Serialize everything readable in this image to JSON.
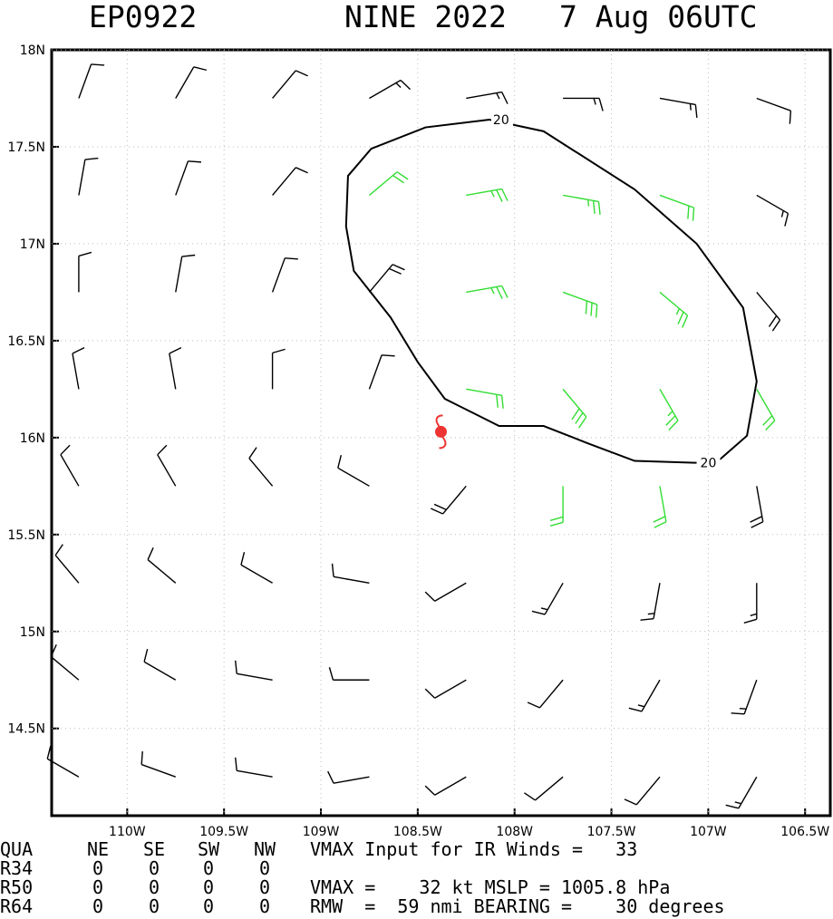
{
  "chart_data": {
    "type": "windbarb",
    "title_parts": [
      "EP0922",
      "NINE 2022",
      "7 Aug 06UTC"
    ],
    "xlim": [
      -110.39,
      -106.37
    ],
    "ylim": [
      14.05,
      18.0
    ],
    "xticks": [
      {
        "value": -110,
        "label": "110W"
      },
      {
        "value": -109.5,
        "label": "109.5W"
      },
      {
        "value": -109,
        "label": "109W"
      },
      {
        "value": -108.5,
        "label": "108.5W"
      },
      {
        "value": -108,
        "label": "108W"
      },
      {
        "value": -107.5,
        "label": "107.5W"
      },
      {
        "value": -107,
        "label": "107W"
      },
      {
        "value": -106.5,
        "label": "106.5W"
      }
    ],
    "yticks": [
      {
        "value": 18,
        "label": "18N"
      },
      {
        "value": 17.5,
        "label": "17.5N"
      },
      {
        "value": 17,
        "label": "17N"
      },
      {
        "value": 16.5,
        "label": "16.5N"
      },
      {
        "value": 16,
        "label": "16N"
      },
      {
        "value": 15.5,
        "label": "15.5N"
      },
      {
        "value": 15,
        "label": "15N"
      },
      {
        "value": 14.5,
        "label": "14.5N"
      }
    ],
    "grid": true,
    "color": "#000000",
    "highlight_color": "#33dd33",
    "barb_lats": [
      17.75,
      17.25,
      16.75,
      16.25,
      15.75,
      15.25,
      14.75,
      14.25
    ],
    "barb_lons": [
      -110.25,
      -109.75,
      -109.25,
      -108.75,
      -108.25,
      -107.75,
      -107.25,
      -106.75
    ],
    "barb_dir": [
      [
        20,
        30,
        40,
        60,
        80,
        90,
        100,
        110
      ],
      [
        10,
        20,
        40,
        50,
        80,
        100,
        110,
        120
      ],
      [
        360,
        10,
        20,
        40,
        80,
        110,
        130,
        140
      ],
      [
        350,
        350,
        360,
        20,
        100,
        140,
        150,
        150
      ],
      [
        330,
        330,
        320,
        300,
        220,
        180,
        170,
        170
      ],
      [
        320,
        310,
        300,
        280,
        240,
        210,
        190,
        180
      ],
      [
        310,
        300,
        280,
        270,
        240,
        220,
        210,
        200
      ],
      [
        300,
        290,
        280,
        260,
        240,
        230,
        220,
        210
      ]
    ],
    "barb_speed": [
      [
        10,
        10,
        12,
        15,
        17,
        15,
        15,
        12
      ],
      [
        10,
        10,
        12,
        20,
        25,
        25,
        22,
        15
      ],
      [
        10,
        10,
        12,
        18,
        27,
        28,
        25,
        18
      ],
      [
        10,
        10,
        10,
        8,
        22,
        28,
        26,
        20
      ],
      [
        10,
        10,
        10,
        8,
        18,
        22,
        22,
        18
      ],
      [
        10,
        10,
        10,
        10,
        12,
        15,
        15,
        15
      ],
      [
        10,
        10,
        10,
        10,
        12,
        12,
        15,
        15
      ],
      [
        10,
        10,
        10,
        10,
        10,
        12,
        12,
        15
      ]
    ],
    "contour_level": 20,
    "contour_lons": [
      -107.06,
      -107.38,
      -107.62,
      -107.85,
      -108.08,
      -108.22,
      -108.36,
      -108.5,
      -108.64,
      -108.83,
      -108.87,
      -108.86,
      -108.74,
      -108.46,
      -108.13,
      -107.85,
      -107.38,
      -107.06,
      -106.82,
      -106.75,
      -106.8,
      -106.96
    ],
    "contour_lats": [
      15.87,
      15.88,
      15.97,
      16.06,
      16.06,
      16.13,
      16.2,
      16.39,
      16.62,
      16.86,
      17.09,
      17.35,
      17.49,
      17.6,
      17.64,
      17.58,
      17.28,
      17.0,
      16.67,
      16.29,
      16.01,
      15.87
    ],
    "center": {
      "lat": 16.03,
      "lon": -108.38,
      "color": "#ee3333"
    },
    "table": {
      "header": [
        "QUA",
        "NE",
        "SE",
        "SW",
        "NW"
      ],
      "rows": [
        [
          "R34",
          0,
          0,
          0,
          0
        ],
        [
          "R50",
          0,
          0,
          0,
          0
        ],
        [
          "R64",
          0,
          0,
          0,
          0
        ]
      ]
    },
    "notes": [
      "VMAX Input for IR Winds =   33",
      "VMAX =    32 kt MSLP = 1005.8 hPa",
      "RMW  =  59 nmi BEARING =    30 degrees"
    ]
  }
}
